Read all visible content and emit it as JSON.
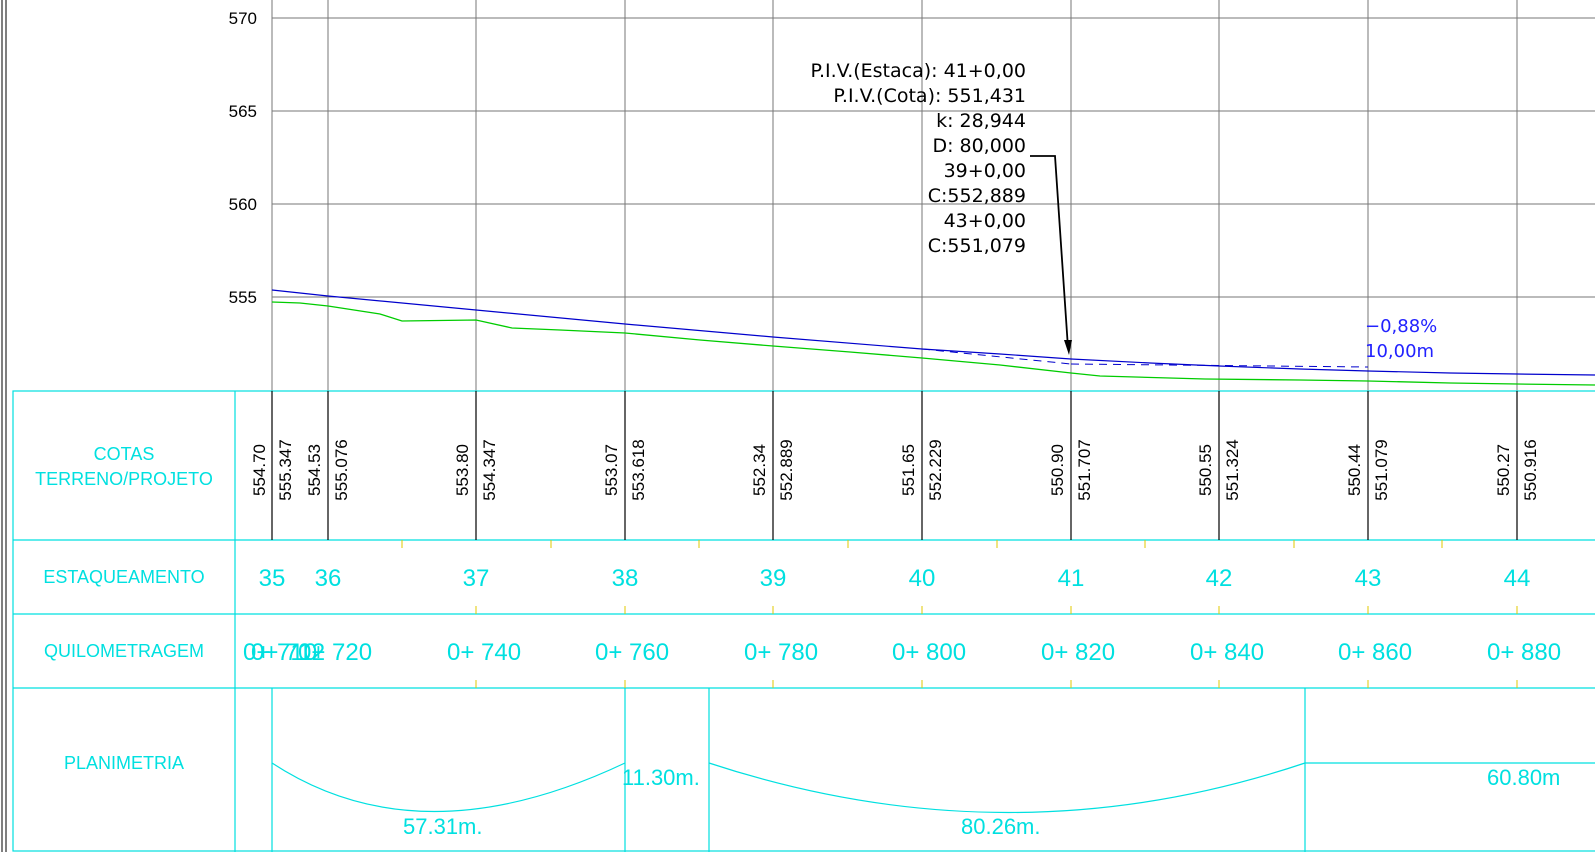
{
  "y_axis": {
    "ticks": [
      "570",
      "565",
      "560",
      "555"
    ]
  },
  "piv": {
    "lines": [
      "P.I.V.(Estaca):  41+0,00",
      "P.I.V.(Cota):  551,431",
      "k:  28,944",
      "D:  80,000",
      "39+0,00",
      "C:552,889",
      "43+0,00",
      "C:551,079"
    ]
  },
  "grade": {
    "slope": "−0,88%",
    "length": "10,00m"
  },
  "rows": {
    "cotas_line1": "COTAS",
    "cotas_line2": "TERRENO/PROJETO",
    "estaqueamento": "ESTAQUEAMENTO",
    "quilometragem": "QUILOMETRAGEM",
    "planimetria": "PLANIMETRIA"
  },
  "cotas": [
    {
      "terreno": "554.70",
      "projeto": "555.347"
    },
    {
      "terreno": "554.53",
      "projeto": "555.076"
    },
    {
      "terreno": "553.80",
      "projeto": "554.347"
    },
    {
      "terreno": "553.07",
      "projeto": "553.618"
    },
    {
      "terreno": "552.34",
      "projeto": "552.889"
    },
    {
      "terreno": "551.65",
      "projeto": "552.229"
    },
    {
      "terreno": "550.90",
      "projeto": "551.707"
    },
    {
      "terreno": "550.55",
      "projeto": "551.324"
    },
    {
      "terreno": "550.44",
      "projeto": "551.079"
    },
    {
      "terreno": "550.27",
      "projeto": "550.916"
    }
  ],
  "stations": [
    "35",
    "36",
    "37",
    "38",
    "39",
    "40",
    "41",
    "42",
    "43",
    "44"
  ],
  "kms": [
    "0+ 710",
    "0+ 712",
    "0+ 720",
    "0+ 740",
    "0+ 760",
    "0+ 780",
    "0+ 800",
    "0+ 820",
    "0+ 840",
    "0+ 860",
    "0+ 880"
  ],
  "planimetria": [
    "57.31m.",
    "11.30m.",
    "80.26m.",
    "60.80m"
  ],
  "colors": {
    "grid": "#777777",
    "table": "#00e0e0",
    "project_line": "#0000cc",
    "terrain_line": "#00cc00",
    "text": "#000000"
  }
}
